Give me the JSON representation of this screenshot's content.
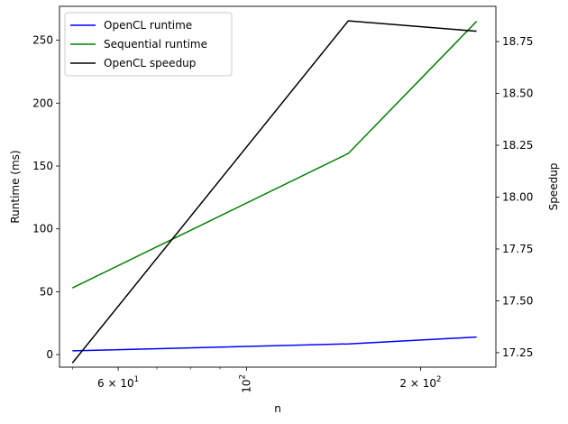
{
  "chart_data": {
    "type": "line",
    "xlabel": "n",
    "ylabel_left": "Runtime (ms)",
    "ylabel_right": "Speedup",
    "x_scale": "log",
    "x": [
      50,
      150,
      250
    ],
    "xlim": [
      47.5,
      270
    ],
    "x_ticks": [
      {
        "value": 60,
        "label": "6 × 10",
        "exp": "1",
        "rotated": false
      },
      {
        "value": 100,
        "label": "10",
        "exp": "2",
        "rotated": true
      },
      {
        "value": 200,
        "label": "2 × 10",
        "exp": "2",
        "rotated": false
      }
    ],
    "ylim_left": [
      -10,
      277
    ],
    "y_ticks_left": [
      0,
      50,
      100,
      150,
      200,
      250
    ],
    "ylim_right": [
      17.18,
      18.92
    ],
    "y_ticks_right": [
      "17.25",
      "17.50",
      "17.75",
      "18.00",
      "18.25",
      "18.50",
      "18.75"
    ],
    "series": [
      {
        "name": "OpenCL runtime",
        "axis": "left",
        "color": "#0000ff",
        "values": [
          3,
          8.5,
          14
        ]
      },
      {
        "name": "Sequential runtime",
        "axis": "left",
        "color": "#008000",
        "values": [
          53,
          160,
          265
        ]
      },
      {
        "name": "OpenCL speedup",
        "axis": "right",
        "color": "#000000",
        "values": [
          17.2,
          18.85,
          18.8
        ]
      }
    ],
    "legend_position": "top-left",
    "grid": false
  }
}
